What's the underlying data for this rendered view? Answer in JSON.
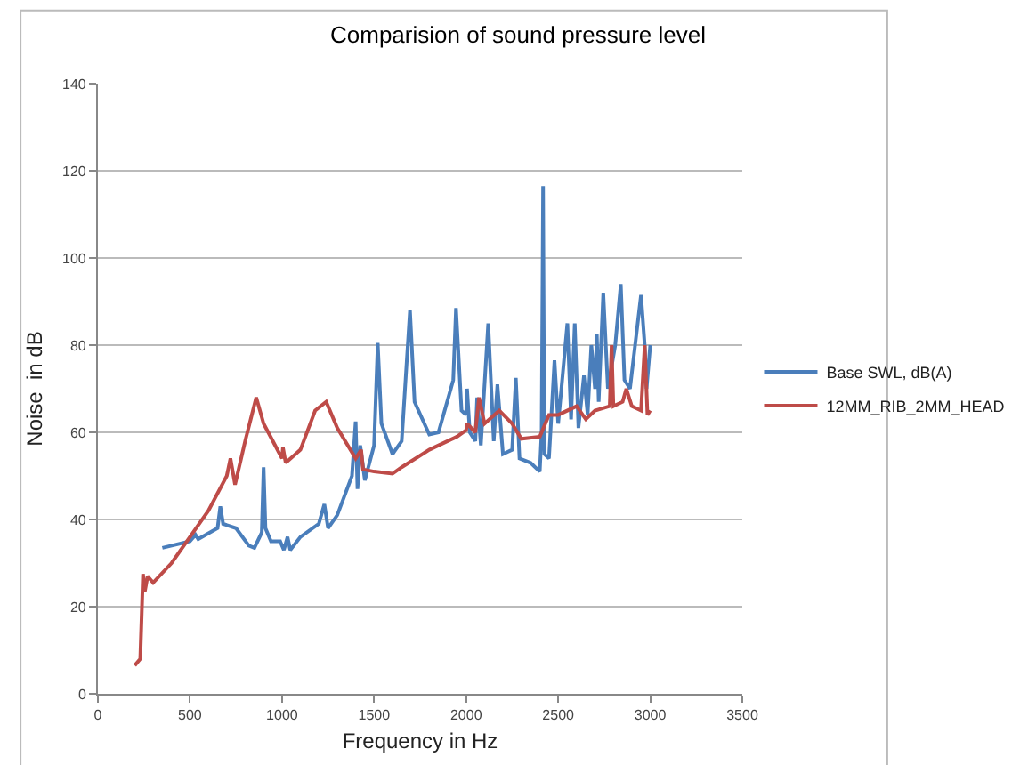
{
  "chart_data": {
    "type": "line",
    "title": "Comparision of sound pressure level",
    "xlabel": "Frequency in Hz",
    "ylabel": "Noise  in dB",
    "xlim": [
      0,
      3500
    ],
    "xticks": [
      0,
      500,
      1000,
      1500,
      2000,
      2500,
      3000,
      3500
    ],
    "ylim": [
      0,
      140
    ],
    "yticks": [
      0,
      20,
      40,
      60,
      80,
      100,
      120,
      140
    ],
    "grid": "y",
    "legend": "right",
    "marker": "none",
    "line_style": "solid",
    "series": [
      {
        "name": "Base SWL, dB(A)",
        "color": "#4a7ebb",
        "x": [
          350,
          500,
          530,
          545,
          650,
          665,
          680,
          750,
          820,
          850,
          890,
          900,
          910,
          940,
          990,
          1010,
          1030,
          1045,
          1100,
          1200,
          1230,
          1250,
          1300,
          1380,
          1400,
          1410,
          1425,
          1450,
          1500,
          1520,
          1540,
          1600,
          1650,
          1695,
          1720,
          1800,
          1850,
          1930,
          1945,
          1975,
          2000,
          2005,
          2020,
          2050,
          2060,
          2080,
          2120,
          2150,
          2170,
          2200,
          2250,
          2270,
          2290,
          2350,
          2400,
          2410,
          2418,
          2425,
          2450,
          2480,
          2500,
          2550,
          2570,
          2590,
          2610,
          2640,
          2660,
          2680,
          2700,
          2710,
          2720,
          2745,
          2770,
          2810,
          2840,
          2860,
          2890,
          2950,
          2970,
          2980,
          3000
        ],
        "values": [
          33.5,
          35,
          36.5,
          35.5,
          38,
          43,
          39,
          38,
          34,
          33.5,
          37,
          52,
          38,
          35,
          35,
          33,
          36,
          33,
          36,
          39,
          43.5,
          38,
          41,
          50,
          62.5,
          47,
          57,
          49,
          57,
          80.5,
          62,
          55,
          58,
          88,
          67,
          59.5,
          60,
          72,
          88.5,
          65,
          64,
          70,
          60,
          58,
          68,
          57,
          85,
          58,
          71,
          55,
          56,
          72.5,
          54,
          53,
          51,
          60,
          116.5,
          55,
          54,
          76.5,
          62,
          85,
          63,
          85,
          61,
          73,
          64,
          80,
          70,
          82.5,
          67,
          92,
          70,
          80,
          94,
          72,
          70,
          91.5,
          80,
          70,
          80
        ]
      },
      {
        "name": "12MM_RIB_2MM_HEAD",
        "color": "#be4b48",
        "x": [
          200,
          230,
          245,
          255,
          270,
          300,
          400,
          500,
          600,
          700,
          720,
          745,
          800,
          860,
          900,
          950,
          1000,
          1005,
          1020,
          1100,
          1180,
          1240,
          1300,
          1400,
          1430,
          1440,
          1500,
          1600,
          1650,
          1800,
          1950,
          2000,
          2005,
          2050,
          2070,
          2100,
          2180,
          2250,
          2300,
          2400,
          2420,
          2450,
          2500,
          2600,
          2650,
          2700,
          2780,
          2790,
          2800,
          2850,
          2870,
          2900,
          2950,
          2970,
          2985,
          3000
        ],
        "values": [
          6.5,
          8,
          27.5,
          23.5,
          27,
          25.5,
          30,
          36,
          42,
          50,
          54,
          48,
          58,
          68,
          62,
          58,
          54,
          56.5,
          53,
          56,
          65,
          67,
          61,
          54,
          56,
          51.5,
          51,
          50.5,
          52,
          56,
          59,
          60.5,
          62,
          60,
          68,
          62,
          65,
          62,
          58.5,
          59,
          61,
          64,
          64,
          66,
          63,
          65,
          66,
          80,
          66,
          67,
          70,
          66,
          65,
          80,
          64,
          65
        ]
      }
    ]
  }
}
